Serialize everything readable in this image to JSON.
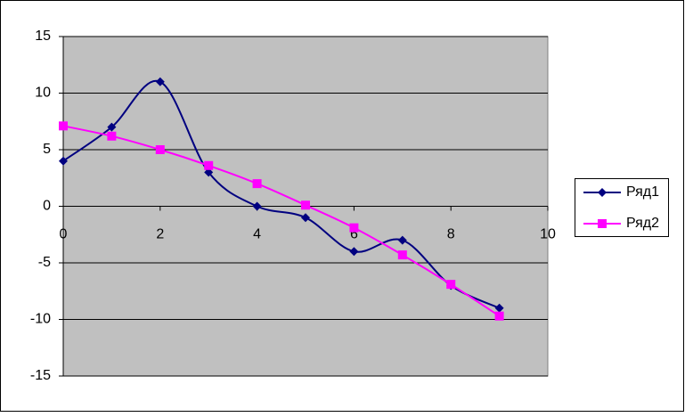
{
  "chart_data": {
    "type": "scatter",
    "smooth": true,
    "grid": true,
    "legend": "right",
    "plot_background": "#c0c0c0",
    "xlim": [
      0,
      10
    ],
    "xticks": [
      0,
      2,
      4,
      6,
      8,
      10
    ],
    "ylim": [
      -15,
      15
    ],
    "yticks": [
      -15,
      -10,
      -5,
      0,
      5,
      10,
      15
    ],
    "series": [
      {
        "name": "Ряд1",
        "color": "#000080",
        "marker": "diamond",
        "x": [
          0,
          1,
          2,
          3,
          4,
          5,
          6,
          7,
          8,
          9
        ],
        "values": [
          4,
          7,
          11,
          3,
          0,
          -1,
          -4,
          -3,
          -7,
          -9
        ]
      },
      {
        "name": "Ряд2",
        "color": "#ff00ff",
        "marker": "square",
        "x": [
          0,
          1,
          2,
          3,
          4,
          5,
          6,
          7,
          8,
          9
        ],
        "values": [
          7.1,
          6.2,
          5,
          3.6,
          2,
          0.1,
          -1.9,
          -4.3,
          -6.9,
          -9.7
        ]
      }
    ]
  }
}
